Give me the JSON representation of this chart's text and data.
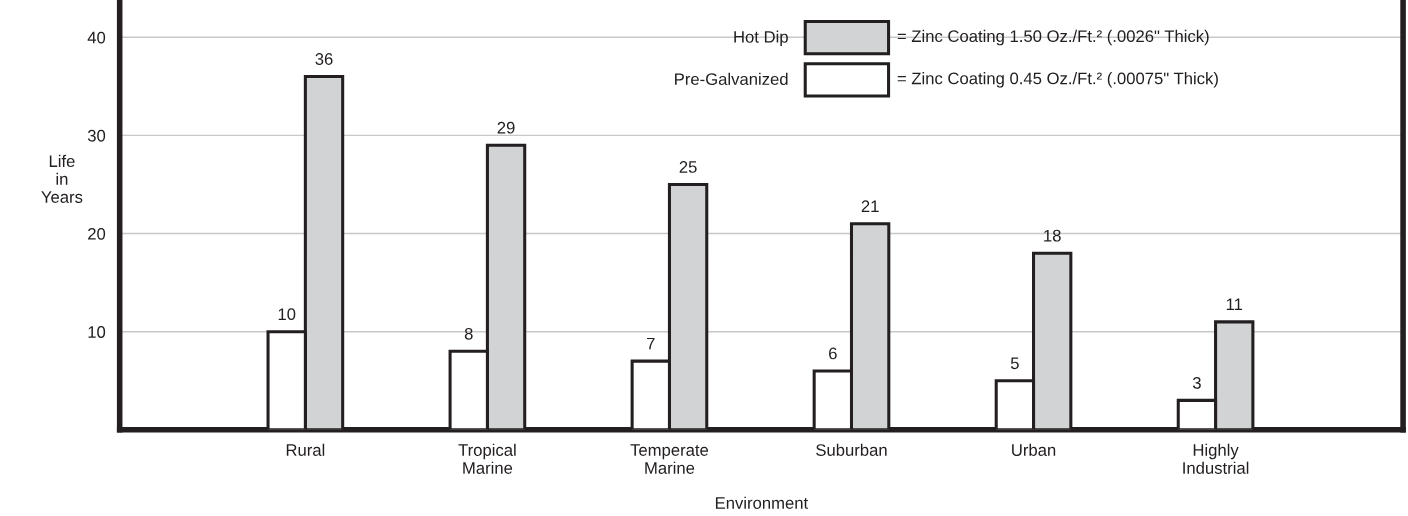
{
  "chart_data": {
    "type": "bar",
    "categories": [
      "Rural",
      "Tropical\nMarine",
      "Temperate\nMarine",
      "Suburban",
      "Urban",
      "Highly\nIndustrial"
    ],
    "series": [
      {
        "name": "Hot Dip",
        "color": "#d1d3d4",
        "values": [
          36,
          29,
          25,
          21,
          18,
          11
        ]
      },
      {
        "name": "Pre-Galvanized",
        "color": "#ffffff",
        "values": [
          10,
          8,
          7,
          6,
          5,
          3
        ]
      }
    ],
    "xlabel": "Environment",
    "ylabel": "Life\nin\nYears",
    "ylim": [
      0,
      43.8
    ],
    "yticks": [
      10,
      20,
      30,
      40
    ],
    "grid": "y",
    "legend": "top",
    "data_labels": true,
    "annotations": [
      "= Zinc Coating 1.50 Oz./Ft.² (.0026\" Thick)",
      "= Zinc Coating 0.45 Oz./Ft.² (.00075\" Thick)"
    ]
  }
}
